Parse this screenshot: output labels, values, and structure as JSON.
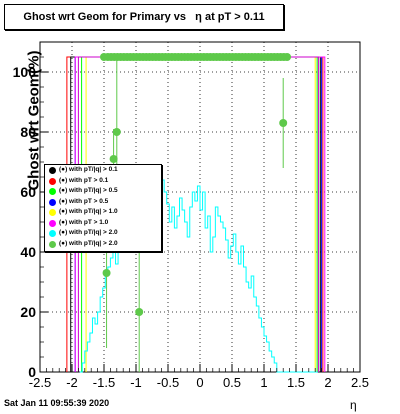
{
  "title": "Ghost wrt Geom for Primary vs   η at pT > 0.11",
  "footer": "Sat Jan 11 09:55:39 2020",
  "chart_data": {
    "type": "line",
    "xlabel": "η",
    "ylabel": "Ghost wrt Geom(%)",
    "xlim": [
      -2.5,
      2.5
    ],
    "ylim": [
      0,
      110
    ],
    "xticks": [
      "-2.5",
      "-2",
      "-1.5",
      "-1",
      "-0.5",
      "0",
      "0.5",
      "1",
      "1.5",
      "2",
      "2.5"
    ],
    "yticks": [
      "0",
      "20",
      "40",
      "60",
      "80",
      "100"
    ],
    "grid": true,
    "legend_position": "left-middle",
    "legend": [
      {
        "label": "(●) with pT/|q| > 0.1",
        "color": "#000000"
      },
      {
        "label": "(●) with pT > 0.1",
        "color": "#ff0000"
      },
      {
        "label": "(●) with pT/|q| > 0.5",
        "color": "#00ff00"
      },
      {
        "label": "(●) with pT > 0.5",
        "color": "#0000ff"
      },
      {
        "label": "(●) with pT/|q| > 1.0",
        "color": "#ffff00"
      },
      {
        "label": "(●) with pT > 1.0",
        "color": "#ff00ff"
      },
      {
        "label": "(●) with pT/|q| > 2.0",
        "color": "#00ffff"
      },
      {
        "label": "(●) with pT/|q| > 2.0",
        "color": "#5ec94a"
      }
    ],
    "step_series": [
      {
        "color": "#ff0000",
        "x1": -2.08,
        "x2": 1.92,
        "y": 105
      },
      {
        "color": "#000000",
        "x1": -2.02,
        "x2": 1.88,
        "y": 105
      },
      {
        "color": "#00ff00",
        "x1": -1.85,
        "x2": 1.83,
        "y": 105
      },
      {
        "color": "#0000ff",
        "x1": -1.95,
        "x2": 1.9,
        "y": 105
      },
      {
        "color": "#ffff00",
        "x1": -1.78,
        "x2": 1.8,
        "y": 105
      },
      {
        "color": "#ff00ff",
        "x1": -1.95,
        "x2": 1.95,
        "y": 105
      },
      {
        "color": "#cc00cc",
        "x1": -1.9,
        "x2": 1.85,
        "y": 105
      }
    ],
    "cyan_series": {
      "color": "#00ffff",
      "x": [
        -1.88,
        -1.84,
        -1.8,
        -1.76,
        -1.72,
        -1.68,
        -1.64,
        -1.6,
        -1.56,
        -1.52,
        -1.48,
        -1.44,
        -1.4,
        -1.36,
        -1.32,
        -1.28,
        -1.24,
        -1.2,
        -1.16,
        -1.12,
        -1.08,
        -1.04,
        -1.0,
        -0.96,
        -0.92,
        -0.88,
        -0.84,
        -0.8,
        -0.76,
        -0.72,
        -0.68,
        -0.64,
        -0.6,
        -0.56,
        -0.52,
        -0.48,
        -0.44,
        -0.4,
        -0.36,
        -0.32,
        -0.28,
        -0.24,
        -0.2,
        -0.16,
        -0.12,
        -0.08,
        -0.04,
        0.0,
        0.04,
        0.08,
        0.12,
        0.16,
        0.2,
        0.24,
        0.28,
        0.32,
        0.36,
        0.4,
        0.44,
        0.48,
        0.52,
        0.56,
        0.6,
        0.64,
        0.68,
        0.72,
        0.76,
        0.8,
        0.84,
        0.88,
        0.92,
        0.96,
        1.0,
        1.04,
        1.08,
        1.12,
        1.16,
        1.2,
        1.24,
        1.28,
        1.32,
        1.36,
        1.4,
        1.44,
        1.48,
        1.52,
        1.56,
        1.6,
        1.64,
        1.68,
        1.72,
        1.76,
        1.8
      ],
      "y": [
        0,
        3,
        7,
        10,
        13,
        18,
        16,
        20,
        25,
        28,
        32,
        35,
        38,
        42,
        36,
        40,
        46,
        44,
        40,
        48,
        43,
        45,
        50,
        52,
        47,
        55,
        52,
        58,
        54,
        60,
        62,
        58,
        64,
        60,
        56,
        50,
        55,
        48,
        52,
        58,
        54,
        50,
        45,
        55,
        60,
        57,
        62,
        54,
        60,
        48,
        52,
        40,
        45,
        55,
        52,
        50,
        48,
        44,
        38,
        42,
        46,
        40,
        36,
        42,
        35,
        30,
        28,
        32,
        25,
        22,
        18,
        15,
        12,
        10,
        7,
        5,
        3,
        0,
        0,
        0,
        0,
        0,
        0,
        0,
        0,
        0,
        0,
        0,
        0,
        0,
        0,
        0,
        0
      ]
    },
    "points": {
      "color": "#5ec94a",
      "x": [
        -1.5,
        -1.44,
        -1.39,
        -1.34,
        -1.29,
        -1.24,
        -1.19,
        -1.14,
        -1.09,
        -1.04,
        -0.99,
        -0.94,
        -0.89,
        -0.84,
        -0.79,
        -0.74,
        -0.69,
        -0.64,
        -0.59,
        -0.54,
        -0.49,
        -0.44,
        -0.39,
        -0.34,
        -0.29,
        -0.24,
        -0.19,
        -0.14,
        -0.09,
        -0.04,
        0.01,
        0.06,
        0.11,
        0.16,
        0.21,
        0.26,
        0.31,
        0.36,
        0.41,
        0.46,
        0.51,
        0.56,
        0.61,
        0.66,
        0.71,
        0.76,
        0.81,
        0.86,
        0.91,
        0.96,
        1.01,
        1.06,
        1.11,
        1.16,
        1.21,
        1.26,
        1.31,
        1.36,
        -1.46,
        -1.35,
        -1.3,
        -0.95,
        1.3
      ],
      "y": [
        105,
        105,
        105,
        105,
        105,
        105,
        105,
        105,
        105,
        105,
        105,
        105,
        105,
        105,
        105,
        105,
        105,
        105,
        105,
        105,
        105,
        105,
        105,
        105,
        105,
        105,
        105,
        105,
        105,
        105,
        105,
        105,
        105,
        105,
        105,
        105,
        105,
        105,
        105,
        105,
        105,
        105,
        105,
        105,
        105,
        105,
        105,
        105,
        105,
        105,
        105,
        105,
        105,
        105,
        105,
        105,
        105,
        105,
        33,
        71,
        80,
        20,
        83
      ],
      "err": [
        0,
        0,
        0,
        0,
        0,
        0,
        0,
        0,
        0,
        0,
        0,
        0,
        0,
        0,
        0,
        0,
        0,
        0,
        0,
        0,
        0,
        0,
        0,
        0,
        0,
        0,
        0,
        0,
        0,
        0,
        0,
        0,
        0,
        0,
        0,
        0,
        0,
        0,
        0,
        0,
        0,
        0,
        0,
        0,
        0,
        0,
        0,
        0,
        0,
        0,
        0,
        0,
        0,
        0,
        0,
        0,
        0,
        0,
        25,
        10,
        25,
        20,
        15
      ]
    }
  }
}
